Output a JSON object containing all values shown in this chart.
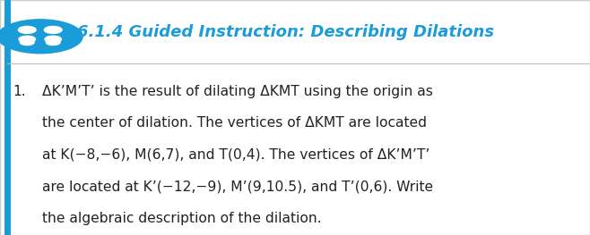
{
  "bg_color": "#f2f2f2",
  "header_text": "6.1.4 Guided Instruction: Describing Dilations",
  "header_color": "#1a9cd8",
  "header_fontsize": 13,
  "icon_color": "#1a9cd8",
  "number": "1.",
  "body_lines": [
    "ΔK’M’T’ is the result of dilating ΔKMT using the origin as",
    "the center of dilation. The vertices of ΔKMT are located",
    "at K(−8,−6), M(6,7), and T(0,4). The vertices of ΔK’M’T’",
    "are located at K’(−12,−9), M’(9,10.5), and T’(0,6). Write",
    "the algebraic description of the dilation."
  ],
  "body_fontsize": 11.2,
  "text_color": "#222222",
  "fig_width": 6.58,
  "fig_height": 2.63
}
